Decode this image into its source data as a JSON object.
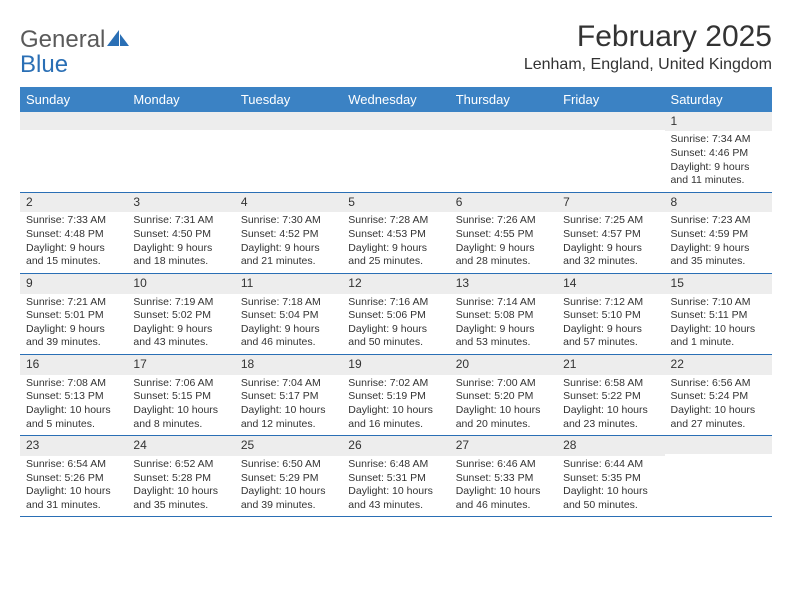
{
  "brand": {
    "text1": "General",
    "text2": "Blue",
    "text1_color": "#5a5a5a",
    "text2_color": "#2a6fb5",
    "icon_color": "#2a6fb5"
  },
  "header": {
    "month_title": "February 2025",
    "location": "Lenham, England, United Kingdom"
  },
  "colors": {
    "header_bar_bg": "#3b82c4",
    "header_bar_text": "#ffffff",
    "daynum_bg": "#ededed",
    "week_border": "#2a6fb5",
    "body_text": "#333333"
  },
  "day_names": [
    "Sunday",
    "Monday",
    "Tuesday",
    "Wednesday",
    "Thursday",
    "Friday",
    "Saturday"
  ],
  "weeks": [
    [
      {
        "n": "",
        "sr": "",
        "ss": "",
        "dl": ""
      },
      {
        "n": "",
        "sr": "",
        "ss": "",
        "dl": ""
      },
      {
        "n": "",
        "sr": "",
        "ss": "",
        "dl": ""
      },
      {
        "n": "",
        "sr": "",
        "ss": "",
        "dl": ""
      },
      {
        "n": "",
        "sr": "",
        "ss": "",
        "dl": ""
      },
      {
        "n": "",
        "sr": "",
        "ss": "",
        "dl": ""
      },
      {
        "n": "1",
        "sr": "Sunrise: 7:34 AM",
        "ss": "Sunset: 4:46 PM",
        "dl": "Daylight: 9 hours and 11 minutes."
      }
    ],
    [
      {
        "n": "2",
        "sr": "Sunrise: 7:33 AM",
        "ss": "Sunset: 4:48 PM",
        "dl": "Daylight: 9 hours and 15 minutes."
      },
      {
        "n": "3",
        "sr": "Sunrise: 7:31 AM",
        "ss": "Sunset: 4:50 PM",
        "dl": "Daylight: 9 hours and 18 minutes."
      },
      {
        "n": "4",
        "sr": "Sunrise: 7:30 AM",
        "ss": "Sunset: 4:52 PM",
        "dl": "Daylight: 9 hours and 21 minutes."
      },
      {
        "n": "5",
        "sr": "Sunrise: 7:28 AM",
        "ss": "Sunset: 4:53 PM",
        "dl": "Daylight: 9 hours and 25 minutes."
      },
      {
        "n": "6",
        "sr": "Sunrise: 7:26 AM",
        "ss": "Sunset: 4:55 PM",
        "dl": "Daylight: 9 hours and 28 minutes."
      },
      {
        "n": "7",
        "sr": "Sunrise: 7:25 AM",
        "ss": "Sunset: 4:57 PM",
        "dl": "Daylight: 9 hours and 32 minutes."
      },
      {
        "n": "8",
        "sr": "Sunrise: 7:23 AM",
        "ss": "Sunset: 4:59 PM",
        "dl": "Daylight: 9 hours and 35 minutes."
      }
    ],
    [
      {
        "n": "9",
        "sr": "Sunrise: 7:21 AM",
        "ss": "Sunset: 5:01 PM",
        "dl": "Daylight: 9 hours and 39 minutes."
      },
      {
        "n": "10",
        "sr": "Sunrise: 7:19 AM",
        "ss": "Sunset: 5:02 PM",
        "dl": "Daylight: 9 hours and 43 minutes."
      },
      {
        "n": "11",
        "sr": "Sunrise: 7:18 AM",
        "ss": "Sunset: 5:04 PM",
        "dl": "Daylight: 9 hours and 46 minutes."
      },
      {
        "n": "12",
        "sr": "Sunrise: 7:16 AM",
        "ss": "Sunset: 5:06 PM",
        "dl": "Daylight: 9 hours and 50 minutes."
      },
      {
        "n": "13",
        "sr": "Sunrise: 7:14 AM",
        "ss": "Sunset: 5:08 PM",
        "dl": "Daylight: 9 hours and 53 minutes."
      },
      {
        "n": "14",
        "sr": "Sunrise: 7:12 AM",
        "ss": "Sunset: 5:10 PM",
        "dl": "Daylight: 9 hours and 57 minutes."
      },
      {
        "n": "15",
        "sr": "Sunrise: 7:10 AM",
        "ss": "Sunset: 5:11 PM",
        "dl": "Daylight: 10 hours and 1 minute."
      }
    ],
    [
      {
        "n": "16",
        "sr": "Sunrise: 7:08 AM",
        "ss": "Sunset: 5:13 PM",
        "dl": "Daylight: 10 hours and 5 minutes."
      },
      {
        "n": "17",
        "sr": "Sunrise: 7:06 AM",
        "ss": "Sunset: 5:15 PM",
        "dl": "Daylight: 10 hours and 8 minutes."
      },
      {
        "n": "18",
        "sr": "Sunrise: 7:04 AM",
        "ss": "Sunset: 5:17 PM",
        "dl": "Daylight: 10 hours and 12 minutes."
      },
      {
        "n": "19",
        "sr": "Sunrise: 7:02 AM",
        "ss": "Sunset: 5:19 PM",
        "dl": "Daylight: 10 hours and 16 minutes."
      },
      {
        "n": "20",
        "sr": "Sunrise: 7:00 AM",
        "ss": "Sunset: 5:20 PM",
        "dl": "Daylight: 10 hours and 20 minutes."
      },
      {
        "n": "21",
        "sr": "Sunrise: 6:58 AM",
        "ss": "Sunset: 5:22 PM",
        "dl": "Daylight: 10 hours and 23 minutes."
      },
      {
        "n": "22",
        "sr": "Sunrise: 6:56 AM",
        "ss": "Sunset: 5:24 PM",
        "dl": "Daylight: 10 hours and 27 minutes."
      }
    ],
    [
      {
        "n": "23",
        "sr": "Sunrise: 6:54 AM",
        "ss": "Sunset: 5:26 PM",
        "dl": "Daylight: 10 hours and 31 minutes."
      },
      {
        "n": "24",
        "sr": "Sunrise: 6:52 AM",
        "ss": "Sunset: 5:28 PM",
        "dl": "Daylight: 10 hours and 35 minutes."
      },
      {
        "n": "25",
        "sr": "Sunrise: 6:50 AM",
        "ss": "Sunset: 5:29 PM",
        "dl": "Daylight: 10 hours and 39 minutes."
      },
      {
        "n": "26",
        "sr": "Sunrise: 6:48 AM",
        "ss": "Sunset: 5:31 PM",
        "dl": "Daylight: 10 hours and 43 minutes."
      },
      {
        "n": "27",
        "sr": "Sunrise: 6:46 AM",
        "ss": "Sunset: 5:33 PM",
        "dl": "Daylight: 10 hours and 46 minutes."
      },
      {
        "n": "28",
        "sr": "Sunrise: 6:44 AM",
        "ss": "Sunset: 5:35 PM",
        "dl": "Daylight: 10 hours and 50 minutes."
      },
      {
        "n": "",
        "sr": "",
        "ss": "",
        "dl": ""
      }
    ]
  ]
}
